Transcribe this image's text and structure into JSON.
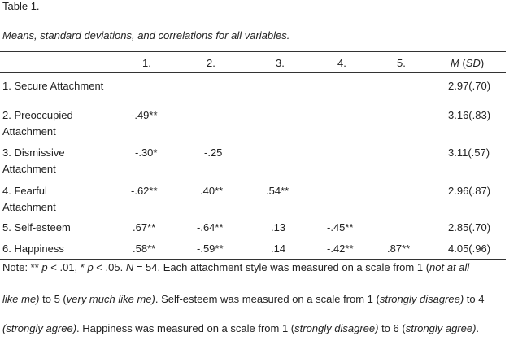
{
  "table_label": "Table 1.",
  "caption": "Means, standard deviations, and correlations for all variables.",
  "headers": [
    "1.",
    "2.",
    "3.",
    "4.",
    "5."
  ],
  "header_m": "M",
  "header_sd": "SD",
  "rows": [
    {
      "label": "1. Secure Attachment",
      "values": [
        "",
        "",
        "",
        "",
        ""
      ],
      "msd": "2.97(.70)"
    },
    {
      "label": "2. Preoccupied Attachment",
      "values": [
        "-.49**",
        "",
        "",
        "",
        ""
      ],
      "msd": "3.16(.83)"
    },
    {
      "label": "3. Dismissive Attachment",
      "values": [
        "-.30*",
        "-.25",
        "",
        "",
        ""
      ],
      "msd": "3.11(.57)"
    },
    {
      "label": "4. Fearful Attachment",
      "values": [
        "-.62**",
        ".40**",
        ".54**",
        "",
        ""
      ],
      "msd": "2.96(.87)"
    },
    {
      "label": "5. Self-esteem",
      "values": [
        ".67**",
        "-.64**",
        ".13",
        "-.45**",
        ""
      ],
      "msd": "2.85(.70)"
    },
    {
      "label": "6. Happiness",
      "values": [
        ".58**",
        "-.59**",
        ".14",
        "-.42**",
        ".87**"
      ],
      "msd": "4.05(.96)"
    }
  ],
  "note": {
    "l1_a": "Note: ** ",
    "l1_p1": "p",
    "l1_b": " <  .01, * ",
    "l1_p2": "p",
    "l1_c": " <  .05. ",
    "l1_n": "N",
    "l1_d": " = 54. Each attachment style was measured on a scale from 1 (",
    "l1_e": "not at all",
    "l2_a": "like me)",
    "l2_b": " to 5 (",
    "l2_c": "very much like me)",
    "l2_d": ". Self-esteem was measured on a scale from 1 (",
    "l2_e": "strongly disagree)",
    "l2_f": " to 4",
    "l3_a": "(strongly agree)",
    "l3_b": ". Happiness was measured on a scale from 1 (",
    "l3_c": "strongly disagree)",
    "l3_d": " to 6 (",
    "l3_e": "strongly agree)",
    "l3_f": "."
  }
}
